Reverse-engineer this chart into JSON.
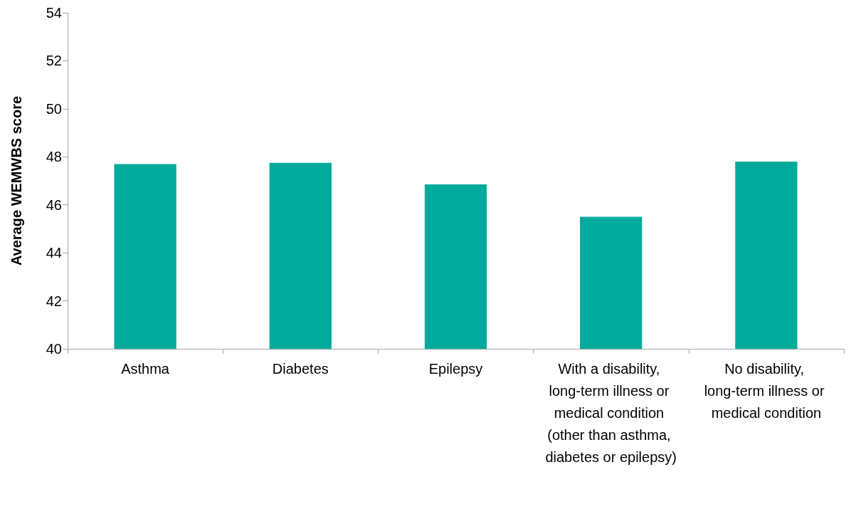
{
  "chart_data": {
    "type": "bar",
    "ylabel": "Average WEMWBS score",
    "categories": [
      "Asthma",
      "Diabetes",
      "Epilepsy",
      "With a disability, long-term illness or medical condition (other than asthma, diabetes or epilepsy)",
      "No disability, long-term illness or medical condition"
    ],
    "values": [
      47.7,
      47.75,
      46.85,
      45.5,
      47.8
    ],
    "color": "#00ab9c",
    "ylim": [
      40,
      54
    ],
    "yticks": [
      40,
      42,
      44,
      46,
      48,
      50,
      52,
      54
    ],
    "grid": false
  }
}
